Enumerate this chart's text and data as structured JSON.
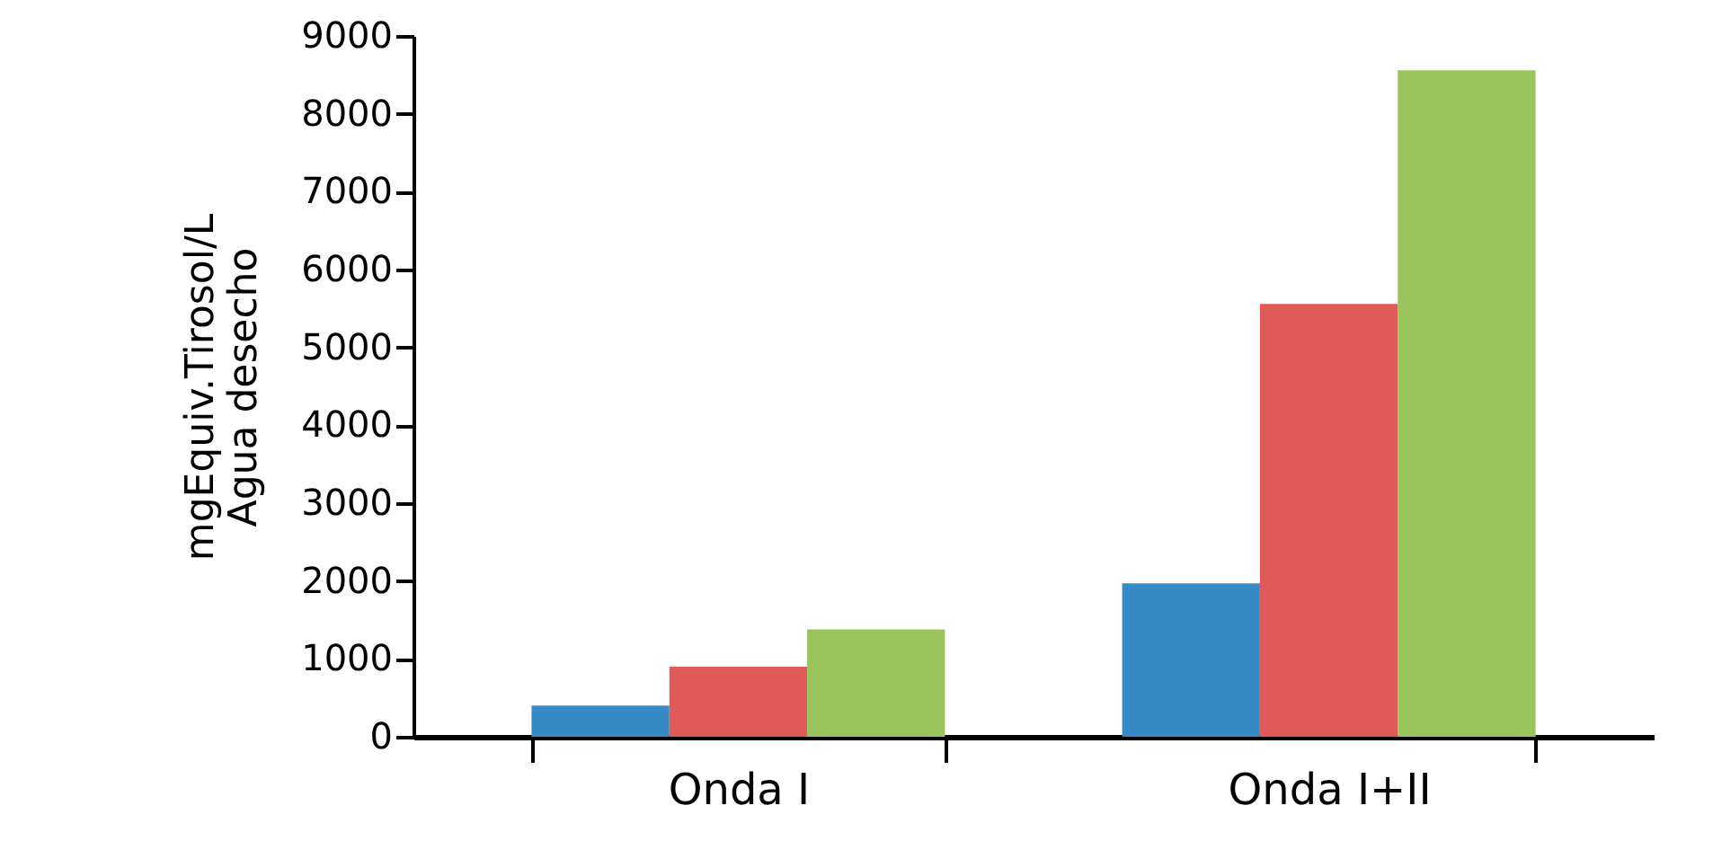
{
  "chart_data": {
    "type": "bar",
    "ylabel": "mgEquiv.Tirosol/L\nAgua desecho",
    "categories": [
      "Onda I",
      "Onda I+II"
    ],
    "series": [
      {
        "color": "#368bc6",
        "values": [
          400,
          1970
        ]
      },
      {
        "color": "#e05b57",
        "values": [
          900,
          5560
        ]
      },
      {
        "color": "#99c35b",
        "values": [
          1380,
          8560
        ]
      }
    ],
    "ylim": [
      0,
      9000
    ],
    "yticks": [
      0,
      1000,
      2000,
      3000,
      4000,
      5000,
      6000,
      7000,
      8000,
      9000
    ],
    "grid": false
  }
}
